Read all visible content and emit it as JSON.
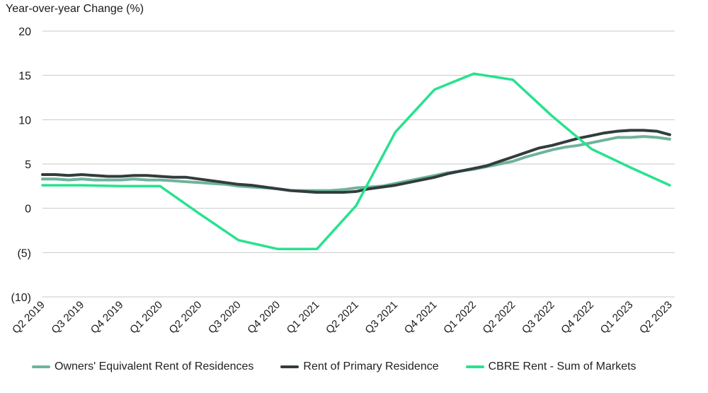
{
  "chart_data": {
    "type": "line",
    "ylabel": "Year-over-year Change (%)",
    "ylim": [
      -10,
      20
    ],
    "yticks": [
      {
        "value": 20,
        "label": "20"
      },
      {
        "value": 15,
        "label": "15"
      },
      {
        "value": 10,
        "label": "10"
      },
      {
        "value": 5,
        "label": "5"
      },
      {
        "value": 0,
        "label": "0"
      },
      {
        "value": -5,
        "label": "(5)"
      },
      {
        "value": -10,
        "label": "(10)"
      }
    ],
    "grid": true,
    "legend_position": "bottom",
    "xticks": [
      {
        "x": 0,
        "label": "Q2 2019"
      },
      {
        "x": 3,
        "label": "Q3 2019"
      },
      {
        "x": 6,
        "label": "Q4 2019"
      },
      {
        "x": 9,
        "label": "Q1 2020"
      },
      {
        "x": 12,
        "label": "Q2 2020"
      },
      {
        "x": 15,
        "label": "Q3 2020"
      },
      {
        "x": 18,
        "label": "Q4 2020"
      },
      {
        "x": 21,
        "label": "Q1 2021"
      },
      {
        "x": 24,
        "label": "Q2 2021"
      },
      {
        "x": 27,
        "label": "Q3 2021"
      },
      {
        "x": 30,
        "label": "Q4 2021"
      },
      {
        "x": 33,
        "label": "Q1 2022"
      },
      {
        "x": 36,
        "label": "Q2 2022"
      },
      {
        "x": 39,
        "label": "Q3 2022"
      },
      {
        "x": 42,
        "label": "Q4 2022"
      },
      {
        "x": 45,
        "label": "Q1 2023"
      },
      {
        "x": 48,
        "label": "Q2 2023"
      }
    ],
    "series": [
      {
        "name": "Owners' Equivalent Rent of Residences",
        "color": "#6fb39a",
        "points": [
          [
            0,
            3.3
          ],
          [
            1,
            3.3
          ],
          [
            2,
            3.2
          ],
          [
            3,
            3.3
          ],
          [
            4,
            3.2
          ],
          [
            5,
            3.2
          ],
          [
            6,
            3.2
          ],
          [
            7,
            3.3
          ],
          [
            8,
            3.2
          ],
          [
            9,
            3.2
          ],
          [
            10,
            3.1
          ],
          [
            11,
            3.0
          ],
          [
            12,
            2.9
          ],
          [
            13,
            2.8
          ],
          [
            14,
            2.7
          ],
          [
            15,
            2.5
          ],
          [
            16,
            2.4
          ],
          [
            17,
            2.3
          ],
          [
            18,
            2.2
          ],
          [
            19,
            2.0
          ],
          [
            20,
            2.0
          ],
          [
            21,
            2.0
          ],
          [
            22,
            2.0
          ],
          [
            23,
            2.1
          ],
          [
            24,
            2.3
          ],
          [
            25,
            2.4
          ],
          [
            26,
            2.5
          ],
          [
            27,
            2.8
          ],
          [
            28,
            3.1
          ],
          [
            29,
            3.4
          ],
          [
            30,
            3.7
          ],
          [
            31,
            4.0
          ],
          [
            32,
            4.2
          ],
          [
            33,
            4.4
          ],
          [
            34,
            4.7
          ],
          [
            35,
            5.0
          ],
          [
            36,
            5.3
          ],
          [
            37,
            5.8
          ],
          [
            38,
            6.2
          ],
          [
            39,
            6.6
          ],
          [
            40,
            6.9
          ],
          [
            41,
            7.1
          ],
          [
            42,
            7.4
          ],
          [
            43,
            7.7
          ],
          [
            44,
            8.0
          ],
          [
            45,
            8.0
          ],
          [
            46,
            8.1
          ],
          [
            47,
            8.0
          ],
          [
            48,
            7.8
          ]
        ]
      },
      {
        "name": "Rent of Primary Residence",
        "color": "#323c3e",
        "points": [
          [
            0,
            3.8
          ],
          [
            1,
            3.8
          ],
          [
            2,
            3.7
          ],
          [
            3,
            3.8
          ],
          [
            4,
            3.7
          ],
          [
            5,
            3.6
          ],
          [
            6,
            3.6
          ],
          [
            7,
            3.7
          ],
          [
            8,
            3.7
          ],
          [
            9,
            3.6
          ],
          [
            10,
            3.5
          ],
          [
            11,
            3.5
          ],
          [
            12,
            3.3
          ],
          [
            13,
            3.1
          ],
          [
            14,
            2.9
          ],
          [
            15,
            2.7
          ],
          [
            16,
            2.6
          ],
          [
            17,
            2.4
          ],
          [
            18,
            2.2
          ],
          [
            19,
            2.0
          ],
          [
            20,
            1.9
          ],
          [
            21,
            1.8
          ],
          [
            22,
            1.8
          ],
          [
            23,
            1.8
          ],
          [
            24,
            1.9
          ],
          [
            25,
            2.2
          ],
          [
            26,
            2.4
          ],
          [
            27,
            2.6
          ],
          [
            28,
            2.9
          ],
          [
            29,
            3.2
          ],
          [
            30,
            3.5
          ],
          [
            31,
            3.9
          ],
          [
            32,
            4.2
          ],
          [
            33,
            4.5
          ],
          [
            34,
            4.8
          ],
          [
            35,
            5.3
          ],
          [
            36,
            5.8
          ],
          [
            37,
            6.3
          ],
          [
            38,
            6.8
          ],
          [
            39,
            7.1
          ],
          [
            40,
            7.5
          ],
          [
            41,
            7.9
          ],
          [
            42,
            8.2
          ],
          [
            43,
            8.5
          ],
          [
            44,
            8.7
          ],
          [
            45,
            8.8
          ],
          [
            46,
            8.8
          ],
          [
            47,
            8.7
          ],
          [
            48,
            8.3
          ]
        ]
      },
      {
        "name": "CBRE Rent - Sum of Markets",
        "color": "#27e28e",
        "points": [
          [
            0,
            2.6
          ],
          [
            3,
            2.6
          ],
          [
            6,
            2.5
          ],
          [
            9,
            2.5
          ],
          [
            12,
            -0.6
          ],
          [
            15,
            -3.6
          ],
          [
            18,
            -4.6
          ],
          [
            21,
            -4.6
          ],
          [
            24,
            0.3
          ],
          [
            27,
            8.6
          ],
          [
            30,
            13.4
          ],
          [
            33,
            15.2
          ],
          [
            36,
            14.5
          ],
          [
            39,
            10.4
          ],
          [
            42,
            6.7
          ],
          [
            45,
            4.6
          ],
          [
            48,
            2.6
          ]
        ]
      }
    ]
  }
}
